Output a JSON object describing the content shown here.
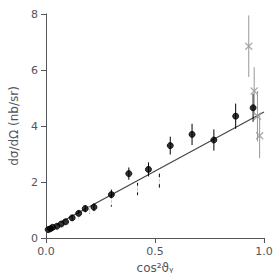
{
  "chart_data": {
    "type": "scatter",
    "xlabel": "cos²ϑᵧ",
    "ylabel": "dσ/dΩ (nb/sr)",
    "xlim": [
      0,
      1.0
    ],
    "ylim": [
      0,
      8
    ],
    "xticks": [
      {
        "value": 0,
        "label": "0.0"
      },
      {
        "value": 0.5,
        "label": "0.5"
      },
      {
        "value": 1,
        "label": "1.0"
      }
    ],
    "yticks": [
      0,
      2,
      4,
      6,
      8
    ],
    "grid": false,
    "series": [
      {
        "type": "line",
        "color": "#444444",
        "line_style": "solid",
        "x": [
          0.0,
          1.0
        ],
        "values": [
          0.28,
          4.5
        ]
      },
      {
        "type": "scatter",
        "marker": "open_circle",
        "color": "#000000",
        "x": [
          0.015,
          0.025,
          0.04,
          0.07,
          0.1,
          0.15,
          0.2,
          0.3,
          0.42,
          0.52
        ],
        "values": [
          0.28,
          0.32,
          0.38,
          0.45,
          0.55,
          0.75,
          1.0,
          1.3,
          1.75,
          2.05
        ],
        "yerr": [
          0.04,
          0.04,
          0.05,
          0.06,
          0.08,
          0.1,
          0.13,
          0.18,
          0.22,
          0.25
        ]
      },
      {
        "type": "scatter",
        "marker": "filled_circle",
        "color": "#000000",
        "x": [
          0.01,
          0.02,
          0.03,
          0.05,
          0.07,
          0.09,
          0.12,
          0.15,
          0.18,
          0.22,
          0.3,
          0.38,
          0.47,
          0.57,
          0.67,
          0.77,
          0.87,
          0.95
        ],
        "values": [
          0.3,
          0.33,
          0.38,
          0.42,
          0.5,
          0.58,
          0.72,
          0.88,
          1.05,
          1.1,
          1.55,
          2.3,
          2.45,
          3.3,
          3.7,
          3.5,
          4.35,
          4.65
        ],
        "yerr": [
          0.05,
          0.05,
          0.05,
          0.06,
          0.07,
          0.07,
          0.09,
          0.1,
          0.13,
          0.14,
          0.18,
          0.22,
          0.25,
          0.32,
          0.38,
          0.38,
          0.45,
          0.5
        ]
      },
      {
        "type": "scatter",
        "marker": "cross",
        "color": "#999999",
        "x": [
          0.93,
          0.955,
          0.97,
          0.98
        ],
        "values": [
          6.85,
          5.25,
          4.35,
          3.65
        ],
        "yerr": [
          1.1,
          0.85,
          0.9,
          0.8
        ]
      }
    ]
  }
}
